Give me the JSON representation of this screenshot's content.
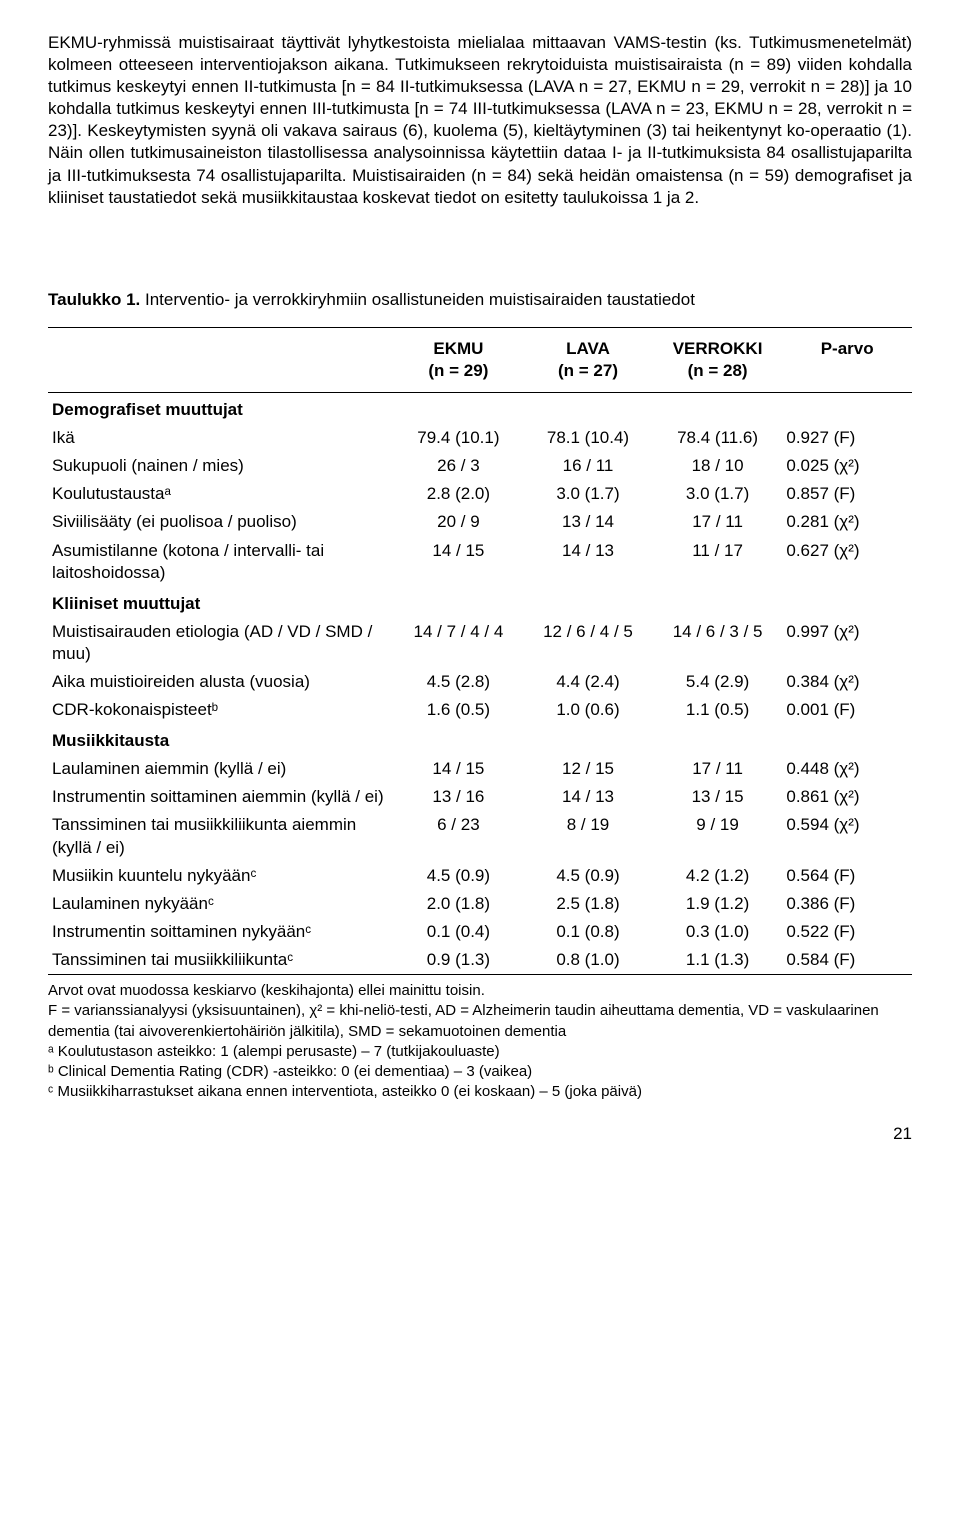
{
  "body_text": "EKMU-ryhmissä muistisairaat täyttivät lyhytkestoista mielialaa mittaavan VAMS-testin (ks. Tutkimusmenetelmät) kolmeen otteeseen interventiojakson aikana. Tutkimukseen rekrytoiduista muistisairaista (n = 89) viiden kohdalla tutkimus keskeytyi ennen II-tutkimusta [n = 84 II-tutkimuksessa (LAVA n = 27, EKMU n = 29, verrokit n = 28)] ja 10 kohdalla tutkimus keskeytyi ennen III-tutkimusta [n = 74 III-tutkimuksessa (LAVA n = 23, EKMU n = 28, verrokit n = 23)]. Keskeytymisten syynä oli vakava sairaus (6), kuolema (5), kieltäytyminen (3) tai heikentynyt ko-operaatio (1). Näin ollen tutkimusaineiston tilastollisessa analysoinnissa käytettiin dataa I- ja II-tutkimuksista 84 osallistujaparilta ja III-tutkimuksesta 74 osallistujaparilta. Muistisairaiden (n = 84) sekä heidän omaistensa (n = 59) demografiset ja kliiniset taustatiedot sekä musiikkitaustaa koskevat tiedot on esitetty taulukoissa 1 ja 2.",
  "table": {
    "title_label": "Taulukko 1.",
    "title_text": "Interventio- ja verrokkiryhmiin osallistuneiden muistisairaiden taustatiedot",
    "headers": {
      "h1": "EKMU",
      "h1s": "(n = 29)",
      "h2": "LAVA",
      "h2s": "(n = 27)",
      "h3": "VERROKKI",
      "h3s": "(n = 28)",
      "h4": "P-arvo"
    },
    "sections": [
      {
        "name": "Demografiset muuttujat",
        "rows": [
          {
            "label": "Ikä",
            "c1": "79.4 (10.1)",
            "c2": "78.1 (10.4)",
            "c3": "78.4 (11.6)",
            "p": "0.927 (F)"
          },
          {
            "label": "Sukupuoli (nainen / mies)",
            "c1": "26 / 3",
            "c2": "16 / 11",
            "c3": "18 / 10",
            "p": "0.025 (χ²)"
          },
          {
            "label": "Koulutustaustaᵃ",
            "c1": "2.8 (2.0)",
            "c2": "3.0 (1.7)",
            "c3": "3.0 (1.7)",
            "p": "0.857 (F)"
          },
          {
            "label": "Siviilisääty (ei puolisoa / puoliso)",
            "c1": "20 / 9",
            "c2": "13 / 14",
            "c3": "17 / 11",
            "p": "0.281 (χ²)"
          },
          {
            "label": "Asumistilanne (kotona / intervalli- tai laitoshoidossa)",
            "c1": "14 / 15",
            "c2": "14 / 13",
            "c3": "11 / 17",
            "p": "0.627 (χ²)"
          }
        ]
      },
      {
        "name": "Kliiniset muuttujat",
        "rows": [
          {
            "label": "Muistisairauden etiologia (AD / VD / SMD / muu)",
            "c1": "14 / 7 / 4 / 4",
            "c2": "12 / 6 / 4 / 5",
            "c3": "14 / 6 / 3 / 5",
            "p": "0.997 (χ²)"
          },
          {
            "label": "Aika muistioireiden alusta (vuosia)",
            "c1": "4.5 (2.8)",
            "c2": "4.4 (2.4)",
            "c3": "5.4 (2.9)",
            "p": "0.384 (χ²)"
          },
          {
            "label": "CDR-kokonaispisteetᵇ",
            "c1": "1.6 (0.5)",
            "c2": "1.0 (0.6)",
            "c3": "1.1 (0.5)",
            "p": "0.001 (F)"
          }
        ]
      },
      {
        "name": "Musiikkitausta",
        "rows": [
          {
            "label": "Laulaminen aiemmin (kyllä / ei)",
            "c1": "14 / 15",
            "c2": "12 / 15",
            "c3": "17 / 11",
            "p": "0.448 (χ²)"
          },
          {
            "label": "Instrumentin soittaminen aiemmin (kyllä / ei)",
            "c1": "13 / 16",
            "c2": "14 / 13",
            "c3": "13 / 15",
            "p": "0.861 (χ²)"
          },
          {
            "label": "Tanssiminen tai musiikkiliikunta aiemmin (kyllä / ei)",
            "c1": "6 / 23",
            "c2": "8 / 19",
            "c3": "9 / 19",
            "p": "0.594 (χ²)"
          },
          {
            "label": "Musiikin kuuntelu nykyäänᶜ",
            "c1": "4.5 (0.9)",
            "c2": "4.5 (0.9)",
            "c3": "4.2 (1.2)",
            "p": "0.564 (F)"
          },
          {
            "label": "Laulaminen nykyäänᶜ",
            "c1": "2.0 (1.8)",
            "c2": "2.5 (1.8)",
            "c3": "1.9 (1.2)",
            "p": "0.386 (F)"
          },
          {
            "label": "Instrumentin soittaminen nykyäänᶜ",
            "c1": "0.1 (0.4)",
            "c2": "0.1 (0.8)",
            "c3": "0.3 (1.0)",
            "p": "0.522 (F)"
          },
          {
            "label": "Tanssiminen tai musiikkiliikuntaᶜ",
            "c1": "0.9 (1.3)",
            "c2": "0.8 (1.0)",
            "c3": "1.1 (1.3)",
            "p": "0.584 (F)"
          }
        ]
      }
    ]
  },
  "footnotes": {
    "l1": "Arvot ovat muodossa keskiarvo (keskihajonta) ellei mainittu toisin.",
    "l2": "F = varianssianalyysi (yksisuuntainen), χ² = khi-neliö-testi, AD = Alzheimerin taudin aiheuttama dementia, VD = vaskulaarinen dementia (tai aivoverenkiertohäiriön jälkitila), SMD = sekamuotoinen dementia",
    "l3": "ᵃ Koulutustason asteikko: 1 (alempi perusaste) – 7 (tutkijakouluaste)",
    "l4": "ᵇ Clinical Dementia Rating (CDR) -asteikko: 0 (ei dementiaa) – 3 (vaikea)",
    "l5": "ᶜ Musiikkiharrastukset aikana ennen interventiota, asteikko 0 (ei koskaan) – 5 (joka päivä)"
  },
  "page_number": "21"
}
